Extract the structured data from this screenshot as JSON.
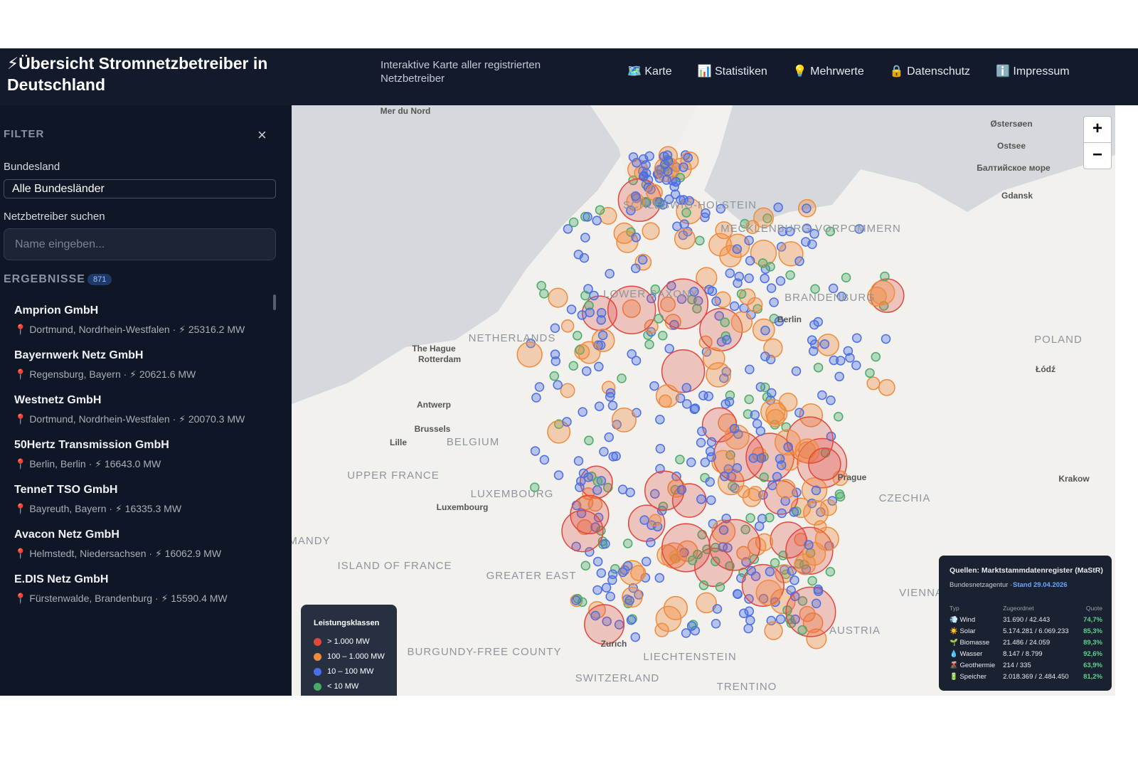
{
  "header": {
    "title": "⚡Übersicht Stromnetzbetreiber in Deutschland",
    "subtitle": "Interaktive Karte aller registrierten Netzbetreiber",
    "nav": [
      "🗺️ Karte",
      "📊 Statistiken",
      "💡 Mehrwerte",
      "🔒 Datenschutz",
      "ℹ️ Impressum"
    ]
  },
  "sidebar": {
    "filter_title": "FILTER",
    "close": "×",
    "bundesland_label": "Bundesland",
    "bundesland_select": "Alle Bundesländer",
    "search_label": "Netzbetreiber suchen",
    "search_placeholder": "Name eingeben...",
    "results_title": "ERGEBNISSE",
    "results_count": "871",
    "results": [
      {
        "name": "Amprion GmbH",
        "detail": "📍 Dortmund, Nordrhein-Westfalen · ⚡ 25316.2 MW"
      },
      {
        "name": "Bayernwerk Netz GmbH",
        "detail": "📍 Regensburg, Bayern · ⚡ 20621.6 MW"
      },
      {
        "name": "Westnetz GmbH",
        "detail": "📍 Dortmund, Nordrhein-Westfalen · ⚡ 20070.3 MW"
      },
      {
        "name": "50Hertz Transmission GmbH",
        "detail": "📍 Berlin, Berlin · ⚡ 16643.0 MW"
      },
      {
        "name": "TenneT TSO GmbH",
        "detail": "📍 Bayreuth, Bayern · ⚡ 16335.3 MW"
      },
      {
        "name": "Avacon Netz GmbH",
        "detail": "📍 Helmstedt, Niedersachsen · ⚡ 16062.9 MW"
      },
      {
        "name": "E.DIS Netz GmbH",
        "detail": "📍 Fürstenwalde, Brandenburg · ⚡ 15590.4 MW"
      }
    ]
  },
  "map": {
    "labels": [
      "Mer du Nord",
      "Østersøen",
      "Ostsee",
      "Балтийское море",
      "Gdansk",
      "SCHLESWIG-HOLSTEIN",
      "MECKLENBURG-VORPOMMERN",
      "LOWER SAXONY",
      "BRANDENBURG",
      "Berlin",
      "NETHERLANDS",
      "The Hague",
      "Rotterdam",
      "POLAND",
      "Łódź",
      "Antwerp",
      "Brussels",
      "BELGIUM",
      "Lille",
      "UPPER FRANCE",
      "LUXEMBOURG",
      "Luxembourg",
      "Prague",
      "CZECHIA",
      "Krakow",
      "ISLAND OF FRANCE",
      "GREATER EAST",
      "MANDY",
      "AUSTRIA",
      "VIENNA",
      "BURGUNDY-FREE COUNTY",
      "Zurich",
      "LIECHTENSTEIN",
      "SWITZERLAND",
      "TRENTINO"
    ],
    "zoom_in": "+",
    "zoom_out": "−",
    "legend": {
      "title": "Leistungsklassen",
      "items": [
        "> 1.000 MW",
        "100 – 1.000 MW",
        "10 – 100 MW",
        "< 10 MW"
      ]
    },
    "sources": {
      "title": "Quellen: Marktstammdatenregister (MaStR)",
      "agency": "Bundesnetzagentur ·",
      "stand": "Stand 29.04.2026",
      "columns": [
        "Typ",
        "Zugeordnet",
        "Quote"
      ],
      "rows": [
        [
          "💨 Wind",
          "31.690 / 42.443",
          "74,7%"
        ],
        [
          "☀️ Solar",
          "5.174.281 / 6.069.233",
          "85,3%"
        ],
        [
          "🌱 Biomasse",
          "21.486 / 24.059",
          "89,3%"
        ],
        [
          "💧 Wasser",
          "8.147 / 8.799",
          "92,6%"
        ],
        [
          "🌋 Geothermie",
          "214 / 335",
          "63,9%"
        ],
        [
          "🔋 Speicher",
          "2.018.369 / 2.484.450",
          "81,2%"
        ]
      ]
    }
  }
}
